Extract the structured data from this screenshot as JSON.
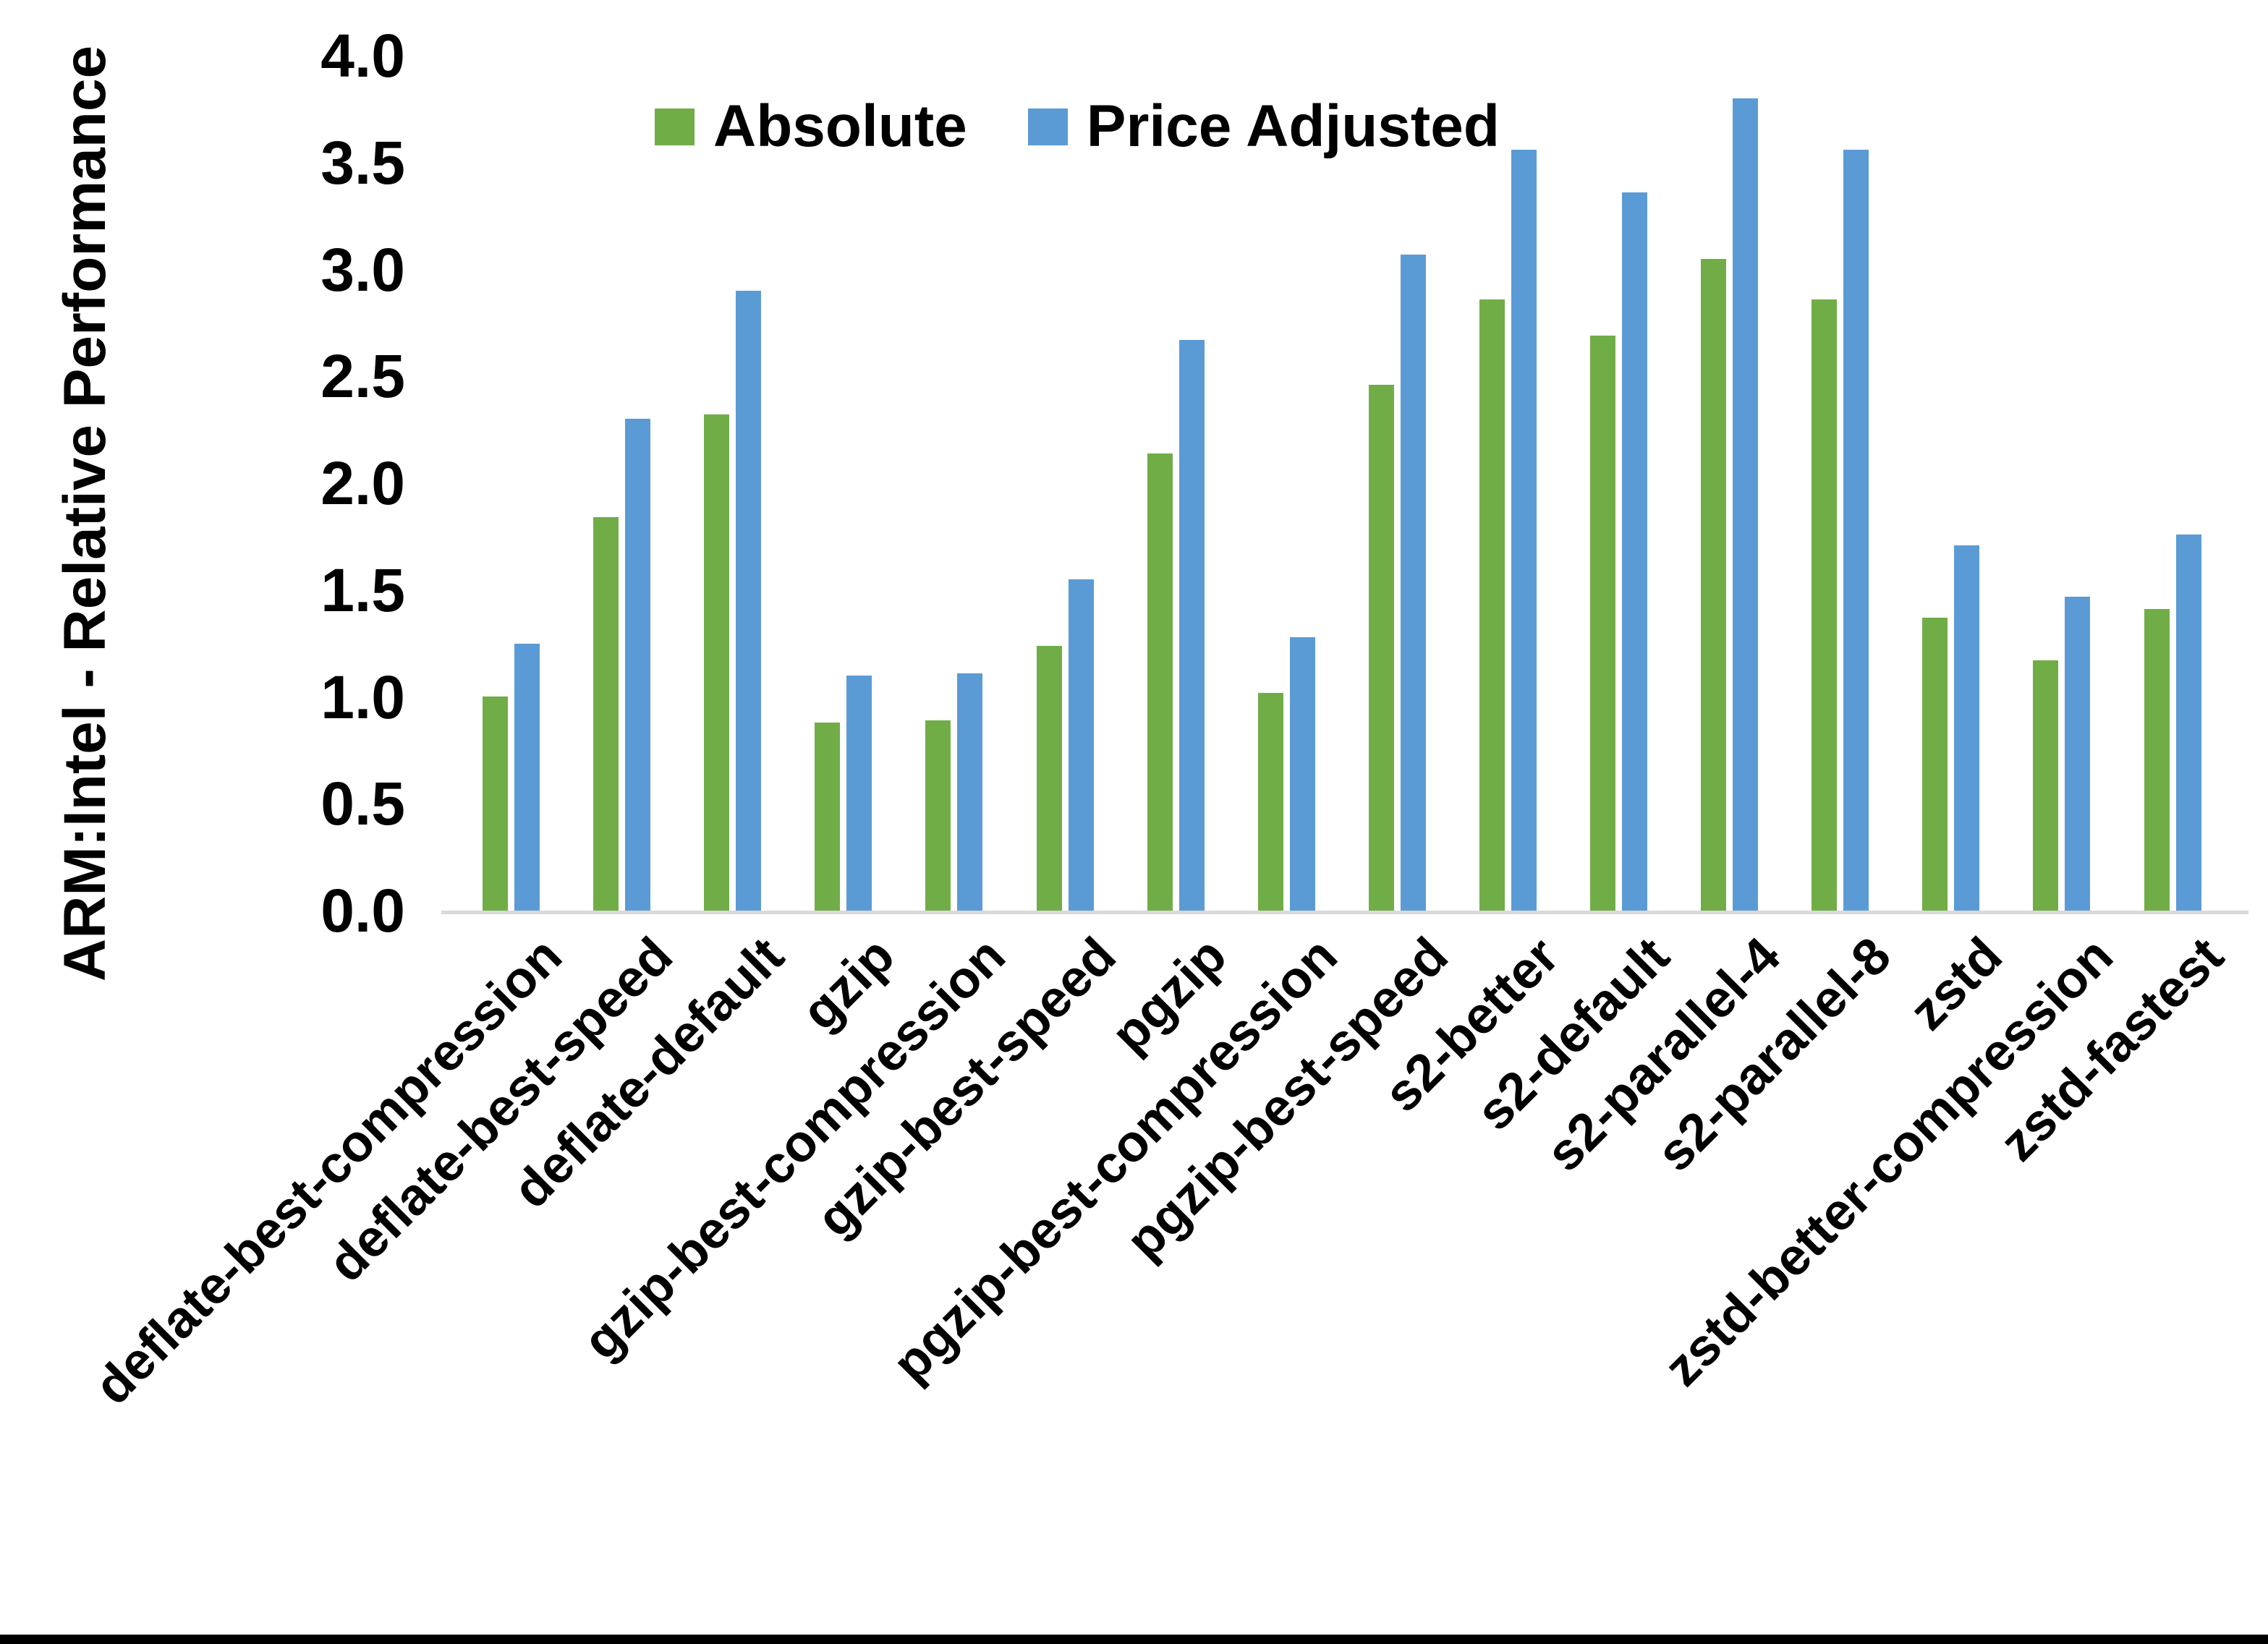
{
  "figure": {
    "background": "#FFFFFF",
    "bottom_border_color": "#000000"
  },
  "chart_data": {
    "type": "bar",
    "title": "",
    "xlabel": "",
    "ylabel": "ARM:Intel - Relative Performance",
    "ylim": [
      0.0,
      4.0
    ],
    "ytick_step": 0.5,
    "ytick_labels": [
      "0.0",
      "0.5",
      "1.0",
      "1.5",
      "2.0",
      "2.5",
      "3.0",
      "3.5",
      "4.0"
    ],
    "grid": false,
    "legend_position": "top-center",
    "axis_line_color": "#D9D9D9",
    "categories": [
      "deflate-best-compression",
      "deflate-best-speed",
      "deflate-default",
      "gzip",
      "gzip-best-compression",
      "gzip-best-speed",
      "pgzip",
      "pgzip-best-compression",
      "pgzip-best-speed",
      "s2-better",
      "s2-default",
      "s2-parallel-4",
      "s2-parallel-8",
      "zstd",
      "zstd-better-compression",
      "zstd-fastest"
    ],
    "series": [
      {
        "name": "Absolute",
        "color": "#70AD47",
        "values": [
          1.0,
          1.84,
          2.32,
          0.88,
          0.89,
          1.24,
          2.14,
          1.02,
          2.46,
          2.86,
          2.69,
          3.05,
          2.86,
          1.37,
          1.17,
          1.41
        ]
      },
      {
        "name": "Price Adjusted",
        "color": "#5B9BD5",
        "values": [
          1.25,
          2.3,
          2.9,
          1.1,
          1.11,
          1.55,
          2.67,
          1.28,
          3.07,
          3.56,
          3.36,
          3.8,
          3.56,
          1.71,
          1.47,
          1.76
        ]
      }
    ]
  }
}
